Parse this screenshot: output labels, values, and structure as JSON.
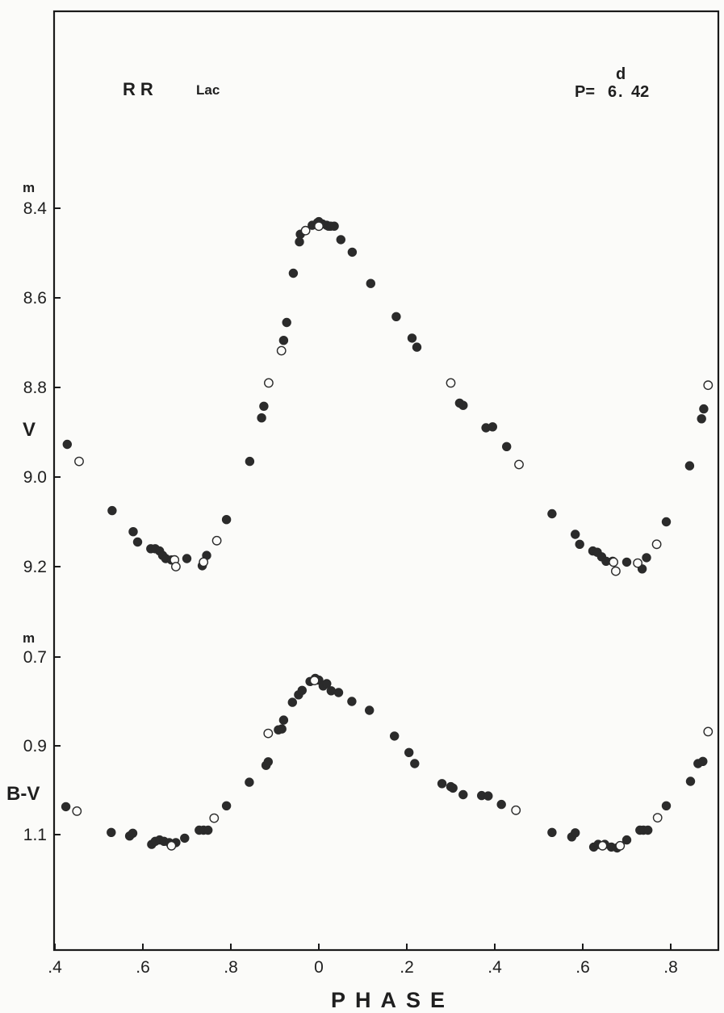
{
  "chart_data": {
    "type": "scatter",
    "star_name": "RR",
    "star_constellation": "Lac",
    "period_label": "P=",
    "period_int": "6",
    "period_unit": "d",
    "period_frac": "42",
    "xlabel": "PHASE",
    "x_tick_labels": [
      ".4",
      ".6",
      ".8",
      "0",
      ".2",
      ".4",
      ".6",
      ".8"
    ],
    "xlim": [
      0.4,
      1.89
    ],
    "x_note": "Phase axis runs from 0.4 through 1.0 (labelled 0) to 1.89; values > 1 are phase + 1.",
    "panels": [
      {
        "ylabel": "V",
        "unit_mark": "m",
        "y_tick_labels": [
          "8.4",
          "8.6",
          "8.8",
          "9.0",
          "9.2"
        ],
        "y_ticks": [
          8.4,
          8.6,
          8.8,
          9.0,
          9.2
        ],
        "ylim": [
          8.35,
          9.25
        ],
        "inverted": true,
        "series": [
          {
            "marker": "filled",
            "points": [
              [
                0.428,
                8.927
              ],
              [
                0.53,
                9.075
              ],
              [
                0.578,
                9.122
              ],
              [
                0.588,
                9.145
              ],
              [
                0.618,
                9.16
              ],
              [
                0.628,
                9.16
              ],
              [
                0.638,
                9.165
              ],
              [
                0.645,
                9.175
              ],
              [
                0.652,
                9.182
              ],
              [
                0.665,
                9.185
              ],
              [
                0.7,
                9.182
              ],
              [
                0.735,
                9.198
              ],
              [
                0.745,
                9.175
              ],
              [
                0.79,
                9.095
              ],
              [
                0.843,
                8.965
              ],
              [
                0.87,
                8.868
              ],
              [
                0.875,
                8.842
              ],
              [
                0.92,
                8.695
              ],
              [
                0.927,
                8.655
              ],
              [
                0.942,
                8.545
              ],
              [
                0.956,
                8.475
              ],
              [
                0.958,
                8.458
              ],
              [
                0.985,
                8.438
              ],
              [
                0.997,
                8.432
              ],
              [
                1.0,
                8.43
              ],
              [
                1.008,
                8.435
              ],
              [
                1.018,
                8.438
              ],
              [
                1.022,
                8.44
              ],
              [
                1.027,
                8.44
              ],
              [
                1.035,
                8.44
              ],
              [
                1.05,
                8.47
              ],
              [
                1.076,
                8.498
              ],
              [
                1.118,
                8.568
              ],
              [
                1.176,
                8.642
              ],
              [
                1.212,
                8.69
              ],
              [
                1.223,
                8.71
              ],
              [
                1.32,
                8.835
              ],
              [
                1.328,
                8.84
              ],
              [
                1.38,
                8.89
              ],
              [
                1.395,
                8.888
              ],
              [
                1.427,
                8.932
              ],
              [
                1.53,
                9.082
              ],
              [
                1.583,
                9.128
              ],
              [
                1.593,
                9.15
              ],
              [
                1.623,
                9.165
              ],
              [
                1.633,
                9.168
              ],
              [
                1.643,
                9.178
              ],
              [
                1.653,
                9.188
              ],
              [
                1.668,
                9.188
              ],
              [
                1.7,
                9.19
              ],
              [
                1.735,
                9.205
              ],
              [
                1.745,
                9.18
              ],
              [
                1.79,
                9.1
              ],
              [
                1.843,
                8.975
              ],
              [
                1.87,
                8.87
              ],
              [
                1.875,
                8.848
              ]
            ]
          },
          {
            "marker": "open",
            "points": [
              [
                0.455,
                8.965
              ],
              [
                0.672,
                9.185
              ],
              [
                0.675,
                9.2
              ],
              [
                0.738,
                9.19
              ],
              [
                0.768,
                9.142
              ],
              [
                0.886,
                8.79
              ],
              [
                0.915,
                8.718
              ],
              [
                0.97,
                8.45
              ],
              [
                1.0,
                8.44
              ],
              [
                1.3,
                8.79
              ],
              [
                1.455,
                8.972
              ],
              [
                1.67,
                9.19
              ],
              [
                1.675,
                9.21
              ],
              [
                1.725,
                9.192
              ],
              [
                1.768,
                9.15
              ],
              [
                1.885,
                8.795
              ]
            ]
          }
        ]
      },
      {
        "ylabel": "B-V",
        "unit_mark": "m",
        "y_tick_labels": [
          "0.7",
          "0.9",
          "1.1"
        ],
        "y_ticks": [
          0.7,
          0.9,
          1.1
        ],
        "ylim": [
          0.67,
          1.3
        ],
        "inverted": true,
        "series": [
          {
            "marker": "filled",
            "points": [
              [
                0.425,
                1.037
              ],
              [
                0.528,
                1.095
              ],
              [
                0.57,
                1.103
              ],
              [
                0.577,
                1.097
              ],
              [
                0.62,
                1.122
              ],
              [
                0.628,
                1.115
              ],
              [
                0.638,
                1.112
              ],
              [
                0.648,
                1.115
              ],
              [
                0.66,
                1.118
              ],
              [
                0.675,
                1.118
              ],
              [
                0.695,
                1.108
              ],
              [
                0.728,
                1.09
              ],
              [
                0.738,
                1.09
              ],
              [
                0.748,
                1.09
              ],
              [
                0.79,
                1.035
              ],
              [
                0.842,
                0.982
              ],
              [
                0.88,
                0.944
              ],
              [
                0.885,
                0.936
              ],
              [
                0.908,
                0.864
              ],
              [
                0.916,
                0.862
              ],
              [
                0.92,
                0.842
              ],
              [
                0.94,
                0.802
              ],
              [
                0.954,
                0.785
              ],
              [
                0.962,
                0.775
              ],
              [
                0.98,
                0.755
              ],
              [
                0.992,
                0.748
              ],
              [
                1.0,
                0.752
              ],
              [
                1.01,
                0.765
              ],
              [
                1.018,
                0.76
              ],
              [
                1.028,
                0.776
              ],
              [
                1.045,
                0.78
              ],
              [
                1.075,
                0.8
              ],
              [
                1.115,
                0.82
              ],
              [
                1.172,
                0.878
              ],
              [
                1.205,
                0.915
              ],
              [
                1.218,
                0.94
              ],
              [
                1.28,
                0.985
              ],
              [
                1.3,
                0.992
              ],
              [
                1.305,
                0.995
              ],
              [
                1.328,
                1.01
              ],
              [
                1.37,
                1.012
              ],
              [
                1.385,
                1.013
              ],
              [
                1.415,
                1.032
              ],
              [
                1.53,
                1.095
              ],
              [
                1.575,
                1.105
              ],
              [
                1.583,
                1.096
              ],
              [
                1.625,
                1.128
              ],
              [
                1.635,
                1.122
              ],
              [
                1.65,
                1.122
              ],
              [
                1.665,
                1.128
              ],
              [
                1.678,
                1.13
              ],
              [
                1.7,
                1.112
              ],
              [
                1.73,
                1.09
              ],
              [
                1.738,
                1.09
              ],
              [
                1.748,
                1.09
              ],
              [
                1.79,
                1.035
              ],
              [
                1.845,
                0.98
              ],
              [
                1.862,
                0.94
              ],
              [
                1.873,
                0.935
              ]
            ]
          },
          {
            "marker": "open",
            "points": [
              [
                0.45,
                1.047
              ],
              [
                0.665,
                1.125
              ],
              [
                0.762,
                1.063
              ],
              [
                0.885,
                0.872
              ],
              [
                0.99,
                0.753
              ],
              [
                1.448,
                1.045
              ],
              [
                1.645,
                1.125
              ],
              [
                1.685,
                1.125
              ],
              [
                1.77,
                1.062
              ],
              [
                1.885,
                0.868
              ]
            ]
          }
        ]
      }
    ]
  }
}
